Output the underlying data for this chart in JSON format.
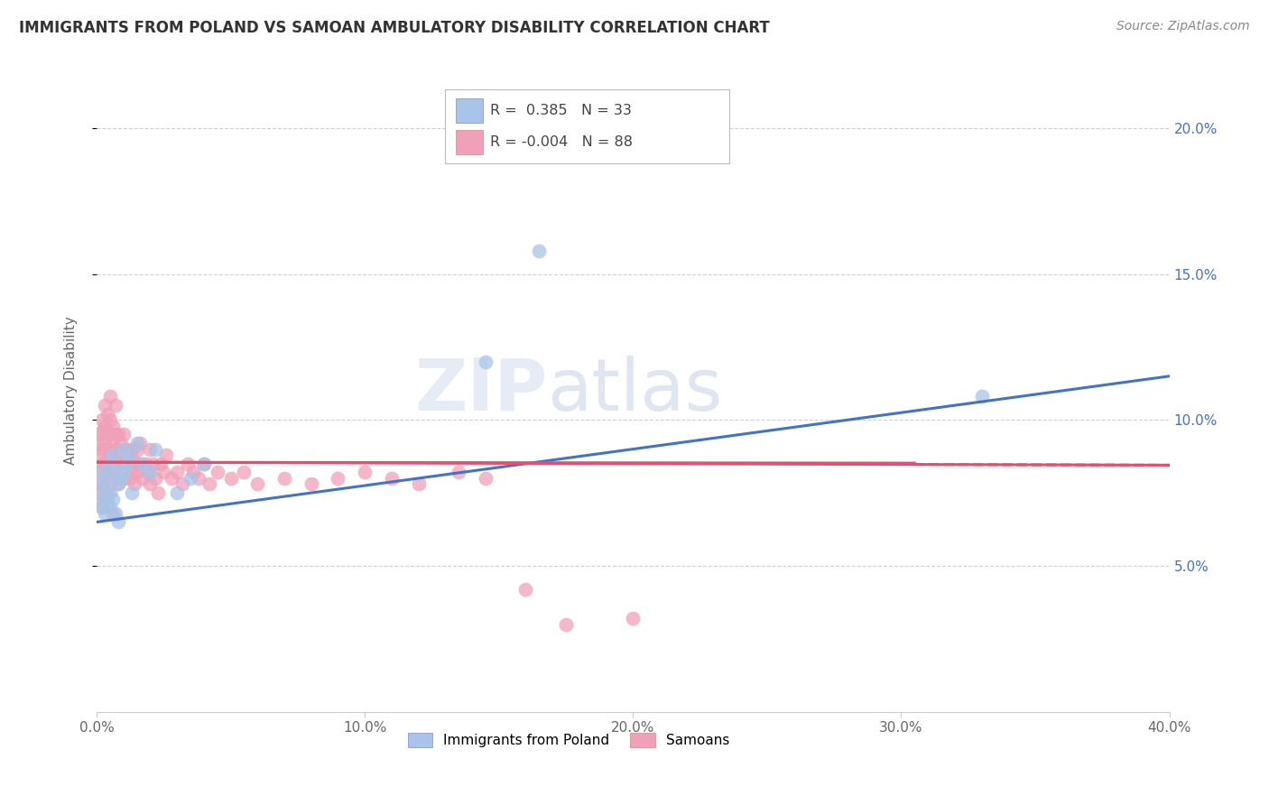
{
  "title": "IMMIGRANTS FROM POLAND VS SAMOAN AMBULATORY DISABILITY CORRELATION CHART",
  "source": "Source: ZipAtlas.com",
  "ylabel": "Ambulatory Disability",
  "xlim": [
    0.0,
    0.4
  ],
  "ylim": [
    0.0,
    0.22
  ],
  "x_ticks": [
    0.0,
    0.1,
    0.2,
    0.3,
    0.4
  ],
  "x_tick_labels": [
    "0.0%",
    "10.0%",
    "20.0%",
    "30.0%",
    "40.0%"
  ],
  "y_ticks": [
    0.05,
    0.1,
    0.15,
    0.2
  ],
  "y_tick_labels": [
    "5.0%",
    "10.0%",
    "15.0%",
    "20.0%"
  ],
  "legend1_r": "0.385",
  "legend1_n": "33",
  "legend2_r": "-0.004",
  "legend2_n": "88",
  "blue_color": "#a8c4e8",
  "pink_color": "#f0a0b8",
  "blue_line_color": "#4472c4",
  "pink_line_color": "#e05070",
  "background_color": "#ffffff",
  "grid_color": "#d0d0d0",
  "poland_x": [
    0.001,
    0.001,
    0.002,
    0.002,
    0.003,
    0.003,
    0.004,
    0.004,
    0.005,
    0.005,
    0.005,
    0.006,
    0.006,
    0.007,
    0.007,
    0.008,
    0.008,
    0.009,
    0.01,
    0.01,
    0.011,
    0.012,
    0.013,
    0.015,
    0.017,
    0.02,
    0.022,
    0.03,
    0.035,
    0.04,
    0.145,
    0.165,
    0.33
  ],
  "poland_y": [
    0.073,
    0.078,
    0.07,
    0.082,
    0.068,
    0.076,
    0.072,
    0.08,
    0.075,
    0.085,
    0.07,
    0.088,
    0.073,
    0.082,
    0.068,
    0.078,
    0.065,
    0.08,
    0.082,
    0.09,
    0.085,
    0.088,
    0.075,
    0.092,
    0.085,
    0.082,
    0.09,
    0.075,
    0.08,
    0.085,
    0.12,
    0.158,
    0.108
  ],
  "samoan_x": [
    0.001,
    0.001,
    0.001,
    0.001,
    0.001,
    0.002,
    0.002,
    0.002,
    0.002,
    0.002,
    0.002,
    0.003,
    0.003,
    0.003,
    0.003,
    0.003,
    0.004,
    0.004,
    0.004,
    0.004,
    0.004,
    0.005,
    0.005,
    0.005,
    0.005,
    0.005,
    0.006,
    0.006,
    0.006,
    0.006,
    0.007,
    0.007,
    0.007,
    0.007,
    0.008,
    0.008,
    0.008,
    0.009,
    0.009,
    0.01,
    0.01,
    0.01,
    0.011,
    0.011,
    0.012,
    0.012,
    0.013,
    0.013,
    0.014,
    0.014,
    0.015,
    0.015,
    0.016,
    0.016,
    0.017,
    0.018,
    0.019,
    0.02,
    0.02,
    0.021,
    0.022,
    0.023,
    0.024,
    0.025,
    0.026,
    0.028,
    0.03,
    0.032,
    0.034,
    0.036,
    0.038,
    0.04,
    0.042,
    0.045,
    0.05,
    0.055,
    0.06,
    0.07,
    0.08,
    0.09,
    0.1,
    0.11,
    0.12,
    0.135,
    0.145,
    0.16,
    0.175,
    0.2
  ],
  "samoan_y": [
    0.075,
    0.082,
    0.088,
    0.092,
    0.095,
    0.078,
    0.085,
    0.09,
    0.096,
    0.1,
    0.07,
    0.085,
    0.092,
    0.098,
    0.105,
    0.073,
    0.082,
    0.09,
    0.096,
    0.102,
    0.075,
    0.088,
    0.095,
    0.1,
    0.108,
    0.078,
    0.085,
    0.092,
    0.098,
    0.068,
    0.082,
    0.09,
    0.095,
    0.105,
    0.078,
    0.088,
    0.095,
    0.085,
    0.092,
    0.08,
    0.088,
    0.095,
    0.085,
    0.09,
    0.08,
    0.088,
    0.082,
    0.09,
    0.078,
    0.086,
    0.082,
    0.09,
    0.085,
    0.092,
    0.08,
    0.085,
    0.082,
    0.078,
    0.09,
    0.085,
    0.08,
    0.075,
    0.085,
    0.082,
    0.088,
    0.08,
    0.082,
    0.078,
    0.085,
    0.082,
    0.08,
    0.085,
    0.078,
    0.082,
    0.08,
    0.082,
    0.078,
    0.08,
    0.078,
    0.08,
    0.082,
    0.08,
    0.078,
    0.082,
    0.08,
    0.042,
    0.03,
    0.032
  ],
  "blue_line_x0": 0.0,
  "blue_line_y0": 0.065,
  "blue_line_x1": 0.4,
  "blue_line_y1": 0.115,
  "pink_line_x0": 0.0,
  "pink_line_y0": 0.0855,
  "pink_line_x1": 0.4,
  "pink_line_y1": 0.0845
}
